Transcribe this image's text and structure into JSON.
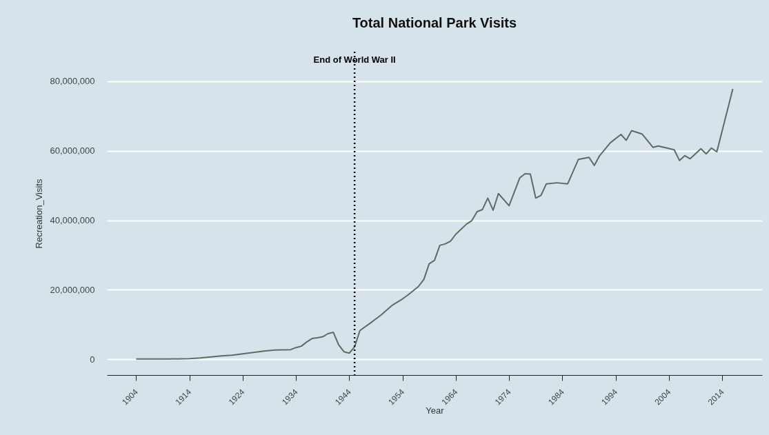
{
  "chart_data": {
    "type": "line",
    "title": "Total National Park Visits",
    "xlabel": "Year",
    "ylabel": "Recreation_Visits",
    "x": [
      1904,
      1910,
      1914,
      1916,
      1918,
      1920,
      1922,
      1925,
      1928,
      1930,
      1933,
      1934,
      1935,
      1936,
      1937,
      1938,
      1939,
      1940,
      1941,
      1942,
      1943,
      1944,
      1945,
      1946,
      1948,
      1950,
      1952,
      1954,
      1955,
      1957,
      1958,
      1959,
      1960,
      1961,
      1962,
      1963,
      1964,
      1966,
      1967,
      1968,
      1969,
      1970,
      1971,
      1972,
      1974,
      1976,
      1977,
      1978,
      1979,
      1980,
      1981,
      1983,
      1985,
      1987,
      1989,
      1990,
      1991,
      1993,
      1995,
      1996,
      1997,
      1999,
      2001,
      2002,
      2005,
      2006,
      2007,
      2008,
      2010,
      2011,
      2012,
      2013,
      2016
    ],
    "series": [
      {
        "color": "#5f6a65",
        "values": [
          100000,
          100000,
          200000,
          400000,
          700000,
          1000000,
          1200000,
          1800000,
          2400000,
          2700000,
          2800000,
          3400000,
          3800000,
          5000000,
          6000000,
          6200000,
          6500000,
          7400000,
          7800000,
          4200000,
          2200000,
          1800000,
          3600000,
          8300000,
          10500000,
          12800000,
          15500000,
          17400000,
          18500000,
          21000000,
          23000000,
          27500000,
          28500000,
          32800000,
          33200000,
          34000000,
          36000000,
          38900000,
          39900000,
          42500000,
          43100000,
          46400000,
          42900000,
          47700000,
          44200000,
          52200000,
          53400000,
          53300000,
          46400000,
          47200000,
          50500000,
          50800000,
          50500000,
          57500000,
          58100000,
          55800000,
          58600000,
          62300000,
          64700000,
          63000000,
          65800000,
          64800000,
          61000000,
          61400000,
          60300000,
          57200000,
          58600000,
          57700000,
          60600000,
          59100000,
          60800000,
          59700000,
          77800000
        ]
      }
    ],
    "xlim": [
      1898.5,
      2021.5
    ],
    "xticks": [
      1904,
      1914,
      1924,
      1934,
      1944,
      1954,
      1964,
      1974,
      1984,
      1994,
      2004,
      2014
    ],
    "ylim": [
      -4500000,
      88500000
    ],
    "yticks": [
      0,
      {
        "value": 20000000,
        "label": "20,000,000"
      },
      {
        "value": 40000000,
        "label": "40,000,000"
      },
      {
        "value": 60000000,
        "label": "60,000,000"
      },
      {
        "value": 80000000,
        "label": "80,000,000"
      }
    ],
    "grid": "y",
    "marker": "none",
    "line_style": "solid",
    "ref_lines": [
      {
        "axis": "x",
        "value": 1945,
        "label": "End of World War II",
        "color": "#000000",
        "line_style": "dotted"
      }
    ]
  }
}
